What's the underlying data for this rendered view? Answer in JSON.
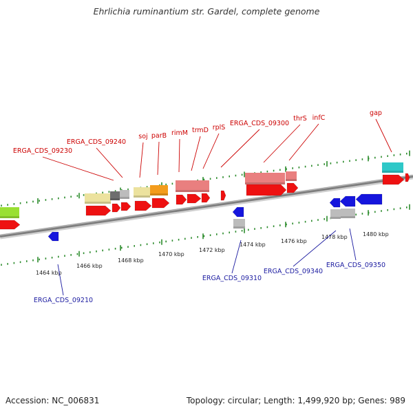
{
  "title": "Ehrlichia ruminantium str. Gardel, complete genome",
  "footer": {
    "accession": "Accession: NC_006831",
    "info": "Topology: circular; Length: 1,499,920 bp; Genes: 989"
  },
  "ruler_ticks": [
    "1464 kbp",
    "1466 kbp",
    "1468 kbp",
    "1470 kbp",
    "1472 kbp",
    "1474 kbp",
    "1476 kbp",
    "1478 kbp",
    "1480 kbp"
  ],
  "top_labels": [
    "ERGA_CDS_09230",
    "ERGA_CDS_09240",
    "soj",
    "parB",
    "rimM",
    "trmD",
    "rplS",
    "ERGA_CDS_09300",
    "thrS",
    "infC",
    "gap"
  ],
  "bottom_labels": [
    "ERGA_CDS_09210",
    "ERGA_CDS_09310",
    "ERGA_CDS_09340",
    "ERGA_CDS_09350"
  ],
  "colors": {
    "forward_label": "#cc0000",
    "reverse_label": "#1a1aa0",
    "forward_gene": "#ee1111",
    "reverse_gene": "#1515dd",
    "tick": "#2a8a2a"
  }
}
